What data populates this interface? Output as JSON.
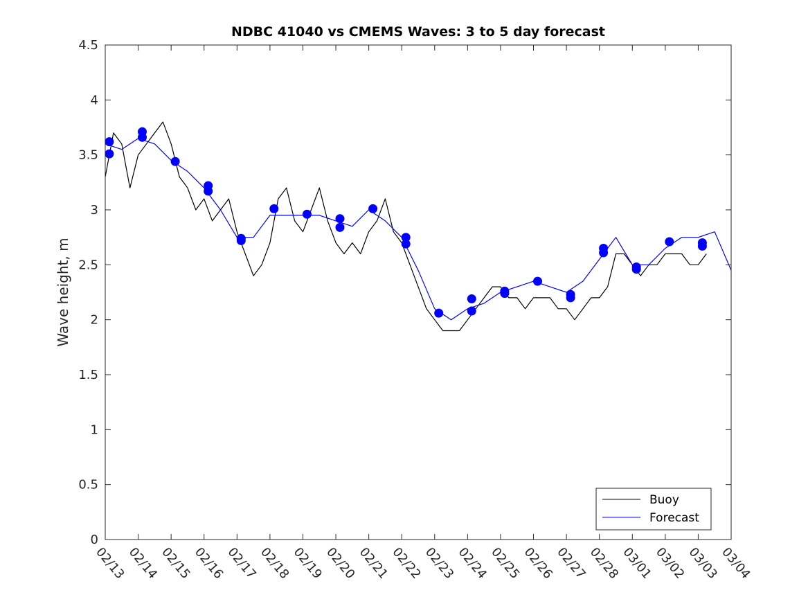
{
  "chart_data": {
    "type": "line",
    "title": "NDBC 41040 vs CMEMS Waves: 3 to 5 day forecast",
    "xlabel": "",
    "ylabel": "Wave height, m",
    "xlim": [
      "02/13",
      "03/04"
    ],
    "ylim": [
      0,
      4.5
    ],
    "yticks": [
      "0",
      "0.5",
      "1",
      "1.5",
      "2",
      "2.5",
      "3",
      "3.5",
      "4",
      "4.5"
    ],
    "xticks": [
      "02/13",
      "02/14",
      "02/15",
      "02/16",
      "02/17",
      "02/18",
      "02/19",
      "02/20",
      "02/21",
      "02/22",
      "02/23",
      "02/24",
      "02/25",
      "02/26",
      "02/27",
      "02/28",
      "03/01",
      "03/02",
      "03/03",
      "03/04"
    ],
    "grid": false,
    "legend": {
      "placement": "bottom-right",
      "entries": [
        "Buoy",
        "Forecast"
      ]
    },
    "colors": {
      "buoy": "#000000",
      "forecast": "#0000ff",
      "markers": "#0000ff"
    },
    "series": [
      {
        "name": "Buoy",
        "x": [
          "02/13 00:00",
          "02/13 06:00",
          "02/13 12:00",
          "02/13 18:00",
          "02/14 00:00",
          "02/14 06:00",
          "02/14 12:00",
          "02/14 18:00",
          "02/15 00:00",
          "02/15 06:00",
          "02/15 12:00",
          "02/15 18:00",
          "02/16 00:00",
          "02/16 06:00",
          "02/16 12:00",
          "02/16 18:00",
          "02/17 00:00",
          "02/17 06:00",
          "02/17 12:00",
          "02/17 18:00",
          "02/18 00:00",
          "02/18 06:00",
          "02/18 12:00",
          "02/18 18:00",
          "02/19 00:00",
          "02/19 06:00",
          "02/19 12:00",
          "02/19 18:00",
          "02/20 00:00",
          "02/20 06:00",
          "02/20 12:00",
          "02/20 18:00",
          "02/21 00:00",
          "02/21 06:00",
          "02/21 12:00",
          "02/21 18:00",
          "02/22 00:00",
          "02/22 06:00",
          "02/22 12:00",
          "02/22 18:00",
          "02/23 00:00",
          "02/23 06:00",
          "02/23 12:00",
          "02/23 18:00",
          "02/24 00:00",
          "02/24 06:00",
          "02/24 12:00",
          "02/24 18:00",
          "02/25 00:00",
          "02/25 06:00",
          "02/25 12:00",
          "02/25 18:00",
          "02/26 00:00",
          "02/26 06:00",
          "02/26 12:00",
          "02/26 18:00",
          "02/27 00:00",
          "02/27 06:00",
          "02/27 12:00",
          "02/27 18:00",
          "02/28 00:00",
          "02/28 06:00",
          "02/28 12:00",
          "02/28 18:00",
          "03/01 00:00",
          "03/01 06:00",
          "03/01 12:00",
          "03/01 18:00",
          "03/02 00:00",
          "03/02 06:00",
          "03/02 12:00",
          "03/02 18:00",
          "03/03 00:00",
          "03/03 06:00"
        ],
        "y": [
          3.3,
          3.7,
          3.6,
          3.2,
          3.5,
          3.6,
          3.7,
          3.8,
          3.6,
          3.3,
          3.2,
          3.0,
          3.1,
          2.9,
          3.0,
          3.1,
          2.8,
          2.6,
          2.4,
          2.5,
          2.7,
          3.1,
          3.2,
          2.9,
          2.8,
          3.0,
          3.2,
          2.9,
          2.7,
          2.6,
          2.7,
          2.6,
          2.8,
          2.9,
          3.1,
          2.8,
          2.7,
          2.5,
          2.3,
          2.1,
          2.0,
          1.9,
          1.9,
          1.9,
          2.0,
          2.1,
          2.2,
          2.3,
          2.3,
          2.2,
          2.2,
          2.1,
          2.2,
          2.2,
          2.2,
          2.1,
          2.1,
          2.0,
          2.1,
          2.2,
          2.2,
          2.3,
          2.6,
          2.6,
          2.5,
          2.4,
          2.5,
          2.5,
          2.6,
          2.6,
          2.6,
          2.5,
          2.5,
          2.6
        ]
      },
      {
        "name": "Forecast",
        "x": [
          "02/13 00:00",
          "02/13 12:00",
          "02/14 00:00",
          "02/14 12:00",
          "02/15 00:00",
          "02/15 12:00",
          "02/16 00:00",
          "02/16 12:00",
          "02/17 00:00",
          "02/17 12:00",
          "02/18 00:00",
          "02/18 12:00",
          "02/19 00:00",
          "02/19 12:00",
          "02/20 00:00",
          "02/20 12:00",
          "02/21 00:00",
          "02/21 12:00",
          "02/22 00:00",
          "02/22 12:00",
          "02/23 00:00",
          "02/23 12:00",
          "02/24 00:00",
          "02/24 12:00",
          "02/25 00:00",
          "02/25 12:00",
          "02/26 00:00",
          "02/26 12:00",
          "02/27 00:00",
          "02/27 12:00",
          "02/28 00:00",
          "02/28 12:00",
          "03/01 00:00",
          "03/01 12:00",
          "03/02 00:00",
          "03/02 12:00",
          "03/03 00:00",
          "03/03 12:00",
          "03/04 00:00"
        ],
        "y": [
          3.6,
          3.55,
          3.65,
          3.6,
          3.45,
          3.35,
          3.2,
          3.0,
          2.75,
          2.75,
          2.95,
          2.95,
          2.95,
          2.95,
          2.9,
          2.85,
          3.0,
          2.9,
          2.75,
          2.45,
          2.1,
          2.0,
          2.1,
          2.15,
          2.25,
          2.3,
          2.35,
          2.3,
          2.25,
          2.35,
          2.55,
          2.75,
          2.5,
          2.5,
          2.65,
          2.75,
          2.75,
          2.8,
          2.45
        ]
      }
    ],
    "markers": {
      "x": [
        "02/13 03:00",
        "02/13 03:00",
        "02/14 03:00",
        "02/14 03:00",
        "02/15 03:00",
        "02/16 03:00",
        "02/16 03:00",
        "02/17 03:00",
        "02/17 03:00",
        "02/18 03:00",
        "02/19 03:00",
        "02/20 03:00",
        "02/20 03:00",
        "02/21 03:00",
        "02/22 03:00",
        "02/22 03:00",
        "02/23 03:00",
        "02/24 03:00",
        "02/24 03:00",
        "02/25 03:00",
        "02/25 03:00",
        "02/26 03:00",
        "02/27 03:00",
        "02/27 03:00",
        "02/28 03:00",
        "02/28 03:00",
        "03/01 03:00",
        "03/01 03:00",
        "03/02 03:00",
        "03/03 03:00",
        "03/03 03:00"
      ],
      "y": [
        3.62,
        3.51,
        3.71,
        3.66,
        3.44,
        3.22,
        3.17,
        2.74,
        2.72,
        3.01,
        2.96,
        2.92,
        2.84,
        3.01,
        2.75,
        2.69,
        2.06,
        2.19,
        2.08,
        2.26,
        2.24,
        2.35,
        2.23,
        2.2,
        2.65,
        2.61,
        2.48,
        2.46,
        2.71,
        2.7,
        2.67
      ]
    }
  }
}
